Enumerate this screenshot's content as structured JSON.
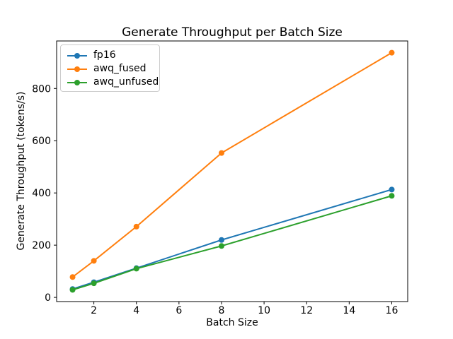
{
  "chart_data": {
    "type": "line",
    "title": "Generate Throughput per Batch Size",
    "xlabel": "Batch Size",
    "ylabel": "Generate Throughput (tokens/s)",
    "x": [
      1,
      2,
      4,
      8,
      16
    ],
    "series": [
      {
        "name": "fp16",
        "color": "#1f77b4",
        "values": [
          32,
          58,
          112,
          220,
          413
        ]
      },
      {
        "name": "awq_fused",
        "color": "#ff7f0e",
        "values": [
          78,
          140,
          271,
          553,
          937
        ]
      },
      {
        "name": "awq_unfused",
        "color": "#2ca02c",
        "values": [
          29,
          54,
          110,
          197,
          389
        ]
      }
    ],
    "xticks": [
      2,
      4,
      6,
      8,
      10,
      12,
      14,
      16
    ],
    "yticks": [
      0,
      200,
      400,
      600,
      800
    ],
    "xlim": [
      0.25,
      16.75
    ],
    "ylim": [
      -16,
      982
    ],
    "grid": false,
    "legend_position": "upper-left",
    "marker": "circle",
    "line_width": 2,
    "marker_radius": 4,
    "background_color": "#ffffff",
    "spine_color": "#000000",
    "legend_border_color": "#cccccc"
  }
}
